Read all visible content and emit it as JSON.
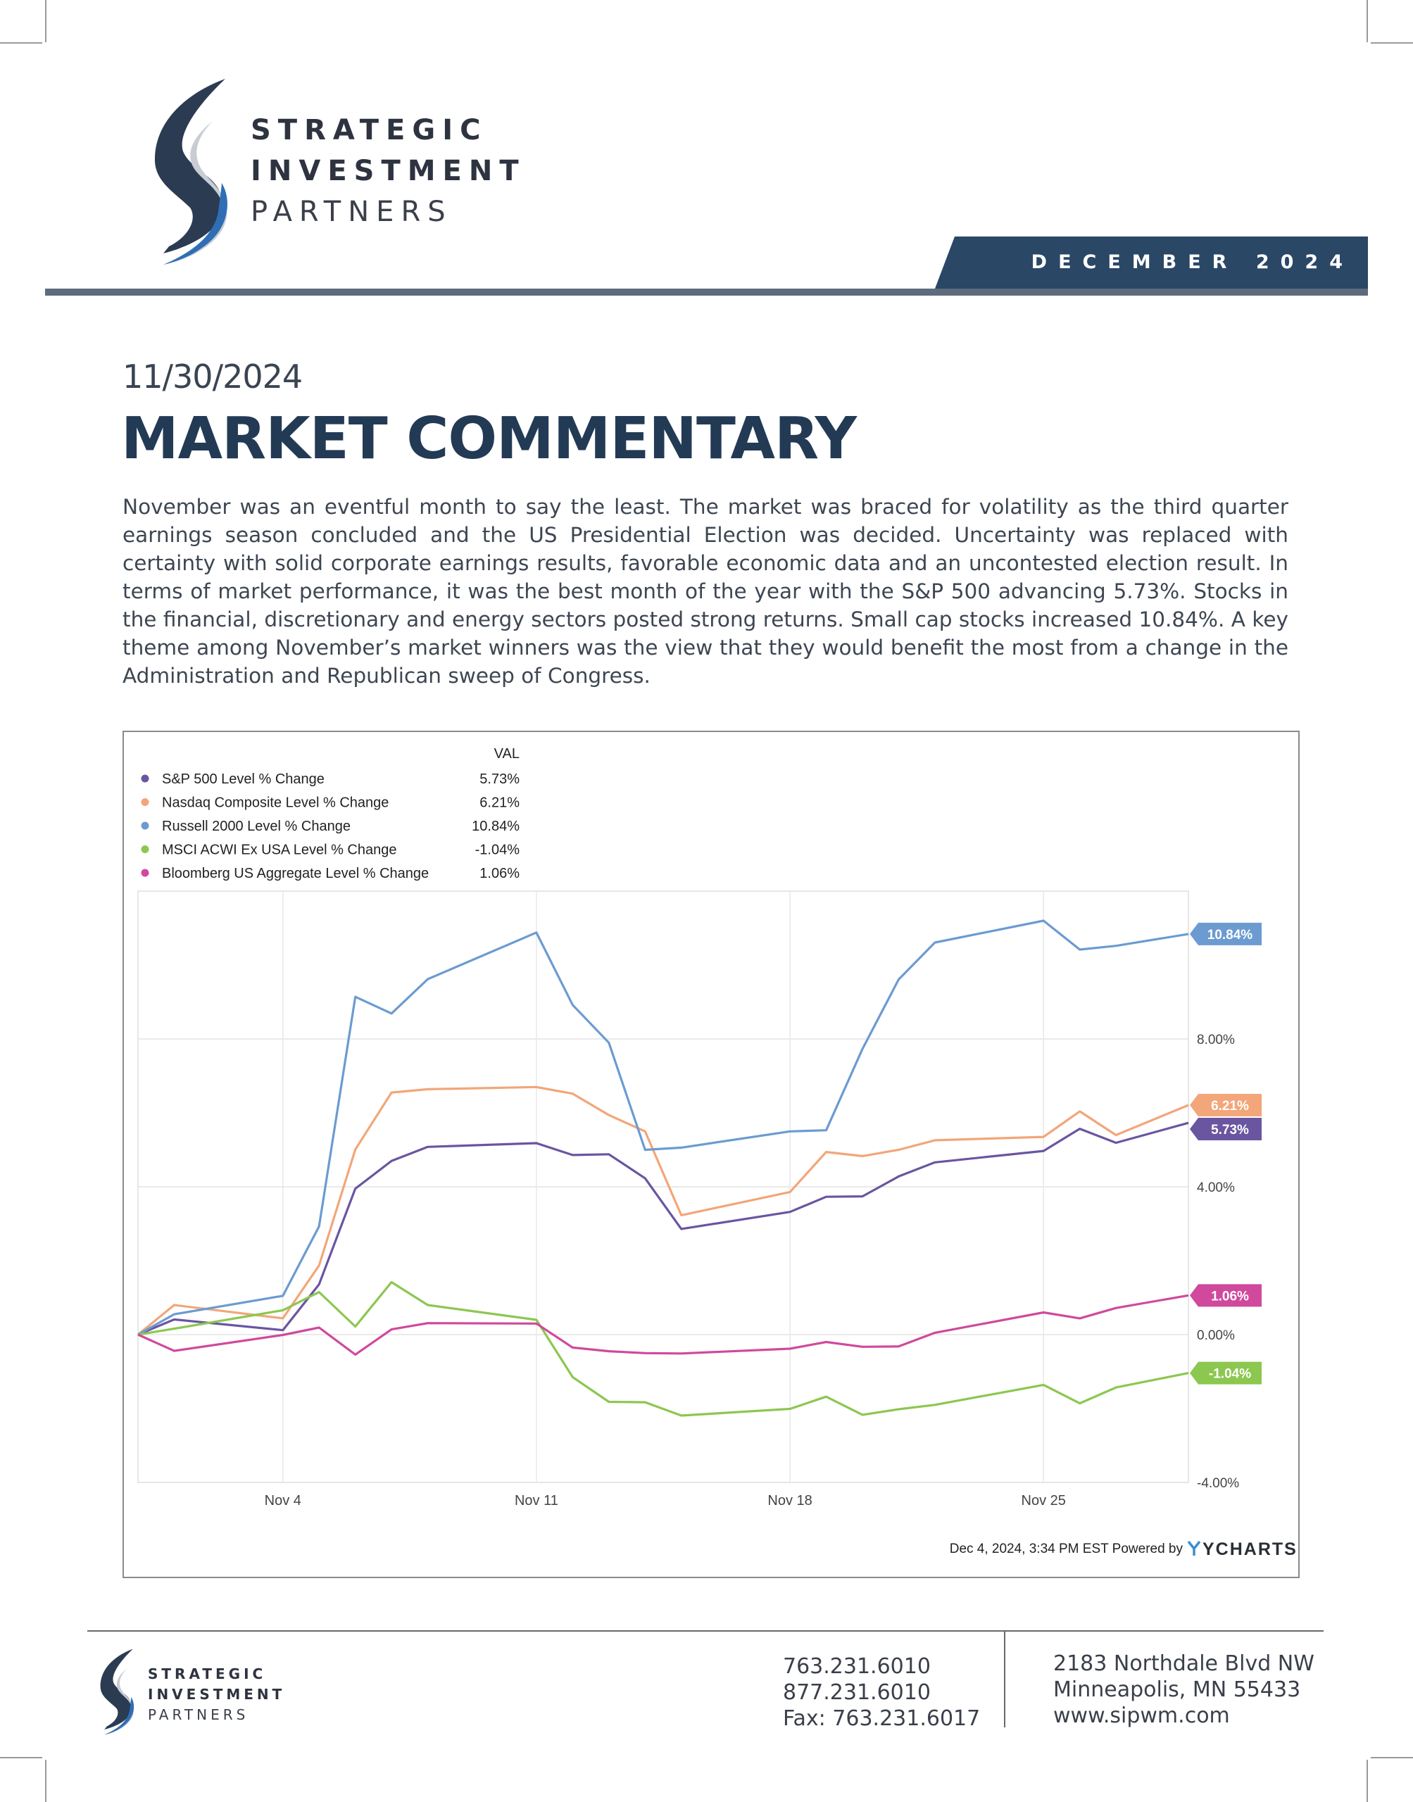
{
  "header": {
    "logo": {
      "line1": "STRATEGIC",
      "line2": "INVESTMENT",
      "line3": "PARTNERS"
    },
    "month_label": "DECEMBER 2024"
  },
  "article": {
    "date": "11/30/2024",
    "title": "MARKET COMMENTARY",
    "body": "November was an eventful month to say the least. The market was braced for volatility as the third quarter earnings season concluded and the US Presidential Election was decided.  Uncertainty was replaced with certainty with solid corporate earnings results, favorable economic data and an uncontested election result. In terms of market performance, it was the best month of the year with the S&P 500 advancing 5.73%.  Stocks in the financial, discretionary and energy sectors posted strong returns. Small cap stocks increased 10.84%. A key theme among November’s market winners was the view that they would benefit the most from a change in the Administration and Republican sweep of Congress."
  },
  "chart_data": {
    "type": "line",
    "legend_header": "VAL",
    "legend_placement": "top-left",
    "grid": true,
    "x_tick_labels": [
      "Nov 4",
      "Nov 11",
      "Nov 18",
      "Nov 25"
    ],
    "y_tick_labels": [
      "8.00%",
      "4.00%",
      "0.00%",
      "-4.00%"
    ],
    "ylim": [
      -4,
      12
    ],
    "x": [
      "2024-10-31",
      "2024-11-01",
      "2024-11-04",
      "2024-11-05",
      "2024-11-06",
      "2024-11-07",
      "2024-11-08",
      "2024-11-11",
      "2024-11-12",
      "2024-11-13",
      "2024-11-14",
      "2024-11-15",
      "2024-11-18",
      "2024-11-19",
      "2024-11-20",
      "2024-11-21",
      "2024-11-22",
      "2024-11-25",
      "2024-11-26",
      "2024-11-27",
      "2024-11-29"
    ],
    "series": [
      {
        "name": "S&P 500 Level % Change",
        "value_label": "5.73%",
        "color": "#6a55a0",
        "values": [
          0,
          0.41,
          0.12,
          1.36,
          3.95,
          4.7,
          5.08,
          5.18,
          4.86,
          4.88,
          4.23,
          2.86,
          3.32,
          3.73,
          3.74,
          4.28,
          4.66,
          4.97,
          5.57,
          5.19,
          5.73
        ]
      },
      {
        "name": "Nasdaq Composite Level % Change",
        "value_label": "6.21%",
        "color": "#f2a679",
        "values": [
          0,
          0.8,
          0.44,
          1.87,
          5.01,
          6.55,
          6.64,
          6.7,
          6.52,
          5.94,
          5.5,
          3.23,
          3.86,
          4.94,
          4.83,
          5.0,
          5.26,
          5.35,
          6.04,
          5.4,
          6.21
        ]
      },
      {
        "name": "Russell 2000 Level % Change",
        "value_label": "10.84%",
        "color": "#6b9bd1",
        "values": [
          0,
          0.55,
          1.05,
          2.93,
          9.14,
          8.69,
          9.62,
          10.88,
          8.92,
          7.9,
          5.0,
          5.06,
          5.5,
          5.53,
          7.73,
          9.61,
          10.61,
          11.2,
          10.42,
          10.52,
          10.84
        ]
      },
      {
        "name": "MSCI ACWI Ex USA Level % Change",
        "value_label": "-1.04%",
        "color": "#8cc750",
        "values": [
          0,
          0.16,
          0.66,
          1.15,
          0.22,
          1.42,
          0.8,
          0.4,
          -1.15,
          -1.82,
          -1.83,
          -2.19,
          -2.01,
          -1.68,
          -2.17,
          -2.02,
          -1.9,
          -1.36,
          -1.86,
          -1.43,
          -1.04
        ]
      },
      {
        "name": "Bloomberg US Aggregate Level % Change",
        "value_label": "1.06%",
        "color": "#d0499d",
        "values": [
          0,
          -0.44,
          -0.01,
          0.19,
          -0.54,
          0.14,
          0.31,
          0.3,
          -0.35,
          -0.45,
          -0.5,
          -0.51,
          -0.38,
          -0.2,
          -0.33,
          -0.32,
          0.05,
          0.6,
          0.44,
          0.72,
          1.06
        ]
      }
    ],
    "footer_note": "Dec 4, 2024, 3:34 PM EST Powered by",
    "brand": "YCHARTS"
  },
  "footer": {
    "logo": {
      "line1": "STRATEGIC",
      "line2": "INVESTMENT",
      "line3": "PARTNERS"
    },
    "phone1": "763.231.6010",
    "phone2": "877.231.6010",
    "fax": "Fax: 763.231.6017",
    "address1": "2183 Northdale Blvd NW",
    "address2": "Minneapolis, MN 55433",
    "website": "www.sipwm.com"
  }
}
